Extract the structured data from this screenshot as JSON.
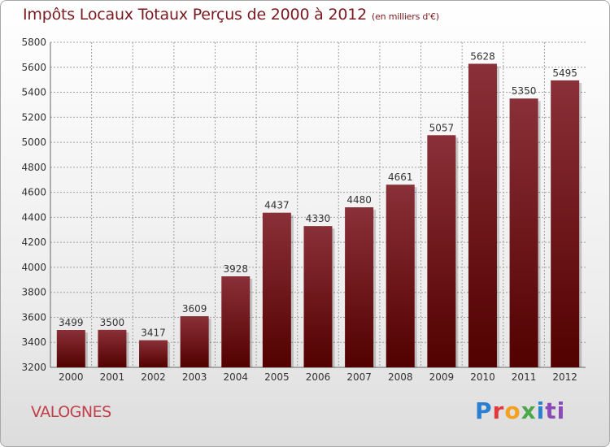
{
  "header": {
    "title": "Impôts Locaux Totaux Perçus de 2000 à 2012",
    "unit": "(en milliers d'€)"
  },
  "footer": {
    "commune": "VALOGNES",
    "logo_letters": [
      "P",
      "r",
      "o",
      "x",
      "i",
      "ti"
    ]
  },
  "colors": {
    "bar_top": "#8a3038",
    "bar_bottom": "#520000",
    "title": "#7a1a20",
    "grid": "#a0a0a0"
  },
  "chart_data": {
    "type": "bar",
    "title": "Impôts Locaux Totaux Perçus de 2000 à 2012",
    "xlabel": "",
    "ylabel": "",
    "categories": [
      "2000",
      "2001",
      "2002",
      "2003",
      "2004",
      "2005",
      "2006",
      "2007",
      "2008",
      "2009",
      "2010",
      "2011",
      "2012"
    ],
    "values": [
      3499,
      3500,
      3417,
      3609,
      3928,
      4437,
      4330,
      4480,
      4661,
      5057,
      5628,
      5350,
      5495
    ],
    "ylim": [
      3200,
      5800
    ],
    "yticks": [
      3200,
      3400,
      3600,
      3800,
      4000,
      4200,
      4400,
      4600,
      4800,
      5000,
      5200,
      5400,
      5600,
      5800
    ],
    "grid": true,
    "legend": "none"
  }
}
